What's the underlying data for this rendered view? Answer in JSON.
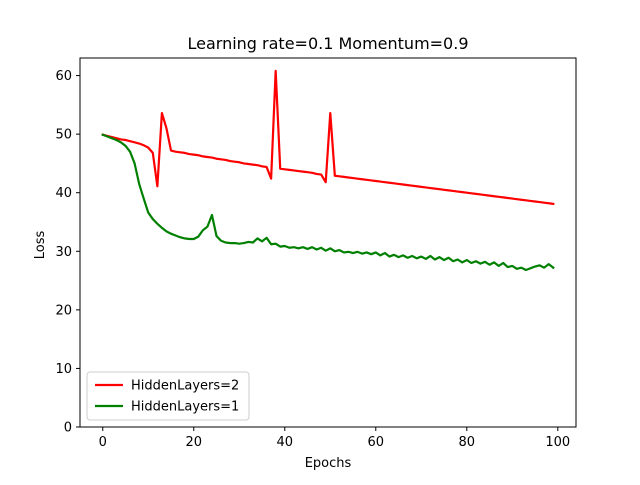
{
  "chart_data": {
    "type": "line",
    "title": "Learning rate=0.1 Momentum=0.9",
    "xlabel": "Epochs",
    "ylabel": "Loss",
    "xlim": [
      -5,
      104
    ],
    "ylim": [
      0,
      63
    ],
    "xticks": [
      0,
      20,
      40,
      60,
      80,
      100
    ],
    "yticks": [
      0,
      10,
      20,
      30,
      40,
      50,
      60
    ],
    "legend_position": "lower-left",
    "grid": false,
    "series": [
      {
        "name": "HiddenLayers=2",
        "color": "#ff0000",
        "x": [
          0,
          1,
          2,
          3,
          4,
          5,
          6,
          7,
          8,
          9,
          10,
          11,
          12,
          13,
          14,
          15,
          16,
          17,
          18,
          19,
          20,
          21,
          22,
          23,
          24,
          25,
          26,
          27,
          28,
          29,
          30,
          31,
          32,
          33,
          34,
          35,
          36,
          37,
          38,
          39,
          40,
          41,
          42,
          43,
          44,
          45,
          46,
          47,
          48,
          49,
          50,
          51,
          52,
          53,
          54,
          55,
          56,
          57,
          58,
          59,
          60,
          61,
          62,
          63,
          64,
          65,
          66,
          67,
          68,
          69,
          70,
          71,
          72,
          73,
          74,
          75,
          76,
          77,
          78,
          79,
          80,
          81,
          82,
          83,
          84,
          85,
          86,
          87,
          88,
          89,
          90,
          91,
          92,
          93,
          94,
          95,
          96,
          97,
          98,
          99
        ],
        "y": [
          49.9,
          49.7,
          49.5,
          49.3,
          49.1,
          49.0,
          48.8,
          48.6,
          48.4,
          48.1,
          47.7,
          46.8,
          41.1,
          53.6,
          51.0,
          47.2,
          47.0,
          46.9,
          46.8,
          46.6,
          46.5,
          46.4,
          46.2,
          46.1,
          46.0,
          45.8,
          45.7,
          45.6,
          45.4,
          45.3,
          45.2,
          45.0,
          44.9,
          44.8,
          44.7,
          44.5,
          44.4,
          42.4,
          60.8,
          44.1,
          44.0,
          43.9,
          43.8,
          43.7,
          43.6,
          43.5,
          43.4,
          43.2,
          43.1,
          41.8,
          53.6,
          42.9,
          42.8,
          42.7,
          42.6,
          42.5,
          42.4,
          42.3,
          42.2,
          42.1,
          42.0,
          41.9,
          41.8,
          41.7,
          41.6,
          41.5,
          41.4,
          41.3,
          41.2,
          41.1,
          41.0,
          40.9,
          40.8,
          40.7,
          40.6,
          40.5,
          40.4,
          40.3,
          40.2,
          40.1,
          40.0,
          39.9,
          39.8,
          39.7,
          39.6,
          39.5,
          39.4,
          39.3,
          39.2,
          39.1,
          39.0,
          38.9,
          38.8,
          38.7,
          38.6,
          38.5,
          38.4,
          38.3,
          38.2,
          38.1
        ]
      },
      {
        "name": "HiddenLayers=1",
        "color": "#008000",
        "x": [
          0,
          1,
          2,
          3,
          4,
          5,
          6,
          7,
          8,
          9,
          10,
          11,
          12,
          13,
          14,
          15,
          16,
          17,
          18,
          19,
          20,
          21,
          22,
          23,
          24,
          25,
          26,
          27,
          28,
          29,
          30,
          31,
          32,
          33,
          34,
          35,
          36,
          37,
          38,
          39,
          40,
          41,
          42,
          43,
          44,
          45,
          46,
          47,
          48,
          49,
          50,
          51,
          52,
          53,
          54,
          55,
          56,
          57,
          58,
          59,
          60,
          61,
          62,
          63,
          64,
          65,
          66,
          67,
          68,
          69,
          70,
          71,
          72,
          73,
          74,
          75,
          76,
          77,
          78,
          79,
          80,
          81,
          82,
          83,
          84,
          85,
          86,
          87,
          88,
          89,
          90,
          91,
          92,
          93,
          94,
          95,
          96,
          97,
          98,
          99
        ],
        "y": [
          49.9,
          49.6,
          49.3,
          49.0,
          48.6,
          48.0,
          47.0,
          45.0,
          41.5,
          39.0,
          36.6,
          35.5,
          34.7,
          34.0,
          33.4,
          33.0,
          32.7,
          32.4,
          32.2,
          32.1,
          32.1,
          32.5,
          33.6,
          34.2,
          36.2,
          32.6,
          31.8,
          31.5,
          31.4,
          31.4,
          31.3,
          31.4,
          31.6,
          31.5,
          32.2,
          31.7,
          32.3,
          31.2,
          31.3,
          30.8,
          30.9,
          30.6,
          30.7,
          30.5,
          30.7,
          30.4,
          30.7,
          30.3,
          30.6,
          30.1,
          30.5,
          30.0,
          30.2,
          29.8,
          29.9,
          29.7,
          29.9,
          29.6,
          29.8,
          29.5,
          29.8,
          29.3,
          29.7,
          29.1,
          29.4,
          29.0,
          29.3,
          28.9,
          29.2,
          28.8,
          29.1,
          28.7,
          29.2,
          28.6,
          29.0,
          28.5,
          28.9,
          28.3,
          28.6,
          28.1,
          28.5,
          28.0,
          28.3,
          27.9,
          28.2,
          27.7,
          28.1,
          27.5,
          28.0,
          27.3,
          27.5,
          27.0,
          27.2,
          26.8,
          27.1,
          27.4,
          27.6,
          27.2,
          27.8,
          27.2
        ]
      }
    ]
  }
}
